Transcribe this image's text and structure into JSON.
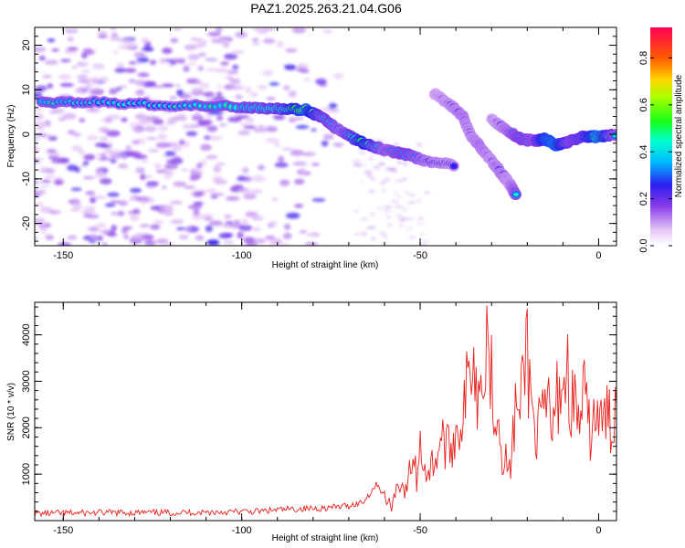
{
  "title": "PAZ1.2025.263.21.04.G06",
  "colors": {
    "snr_line": "#e8201c",
    "axis": "#000000",
    "background": "#ffffff"
  },
  "chart_data": [
    {
      "type": "heatmap",
      "name": "spectrogram",
      "xlabel": "Height of straight line (km)",
      "ylabel": "Frequency (Hz)",
      "xlim": [
        -158,
        5
      ],
      "ylim": [
        -25,
        24
      ],
      "x_ticks": [
        -150,
        -100,
        -50,
        0
      ],
      "y_ticks": [
        -20,
        -10,
        0,
        10,
        20
      ],
      "x_tick_labels": [
        "-150",
        "-100",
        "-50",
        "0"
      ],
      "y_tick_labels": [
        "-20",
        "-10",
        "0",
        "10",
        "20"
      ],
      "colorbar": {
        "label": "Normalized spectral amplitude",
        "range": [
          0,
          0.93
        ],
        "ticks": [
          0,
          0.2,
          0.4,
          0.6,
          0.8
        ],
        "tick_labels": [
          "0.0",
          "0.2",
          "0.4",
          "0.6",
          "0.8"
        ]
      },
      "ridges": [
        {
          "name": "main-ridge",
          "points": [
            [
              -156,
              7.2
            ],
            [
              -140,
              7.2
            ],
            [
              -120,
              6.5
            ],
            [
              -100,
              6.2
            ],
            [
              -90,
              5.8
            ],
            [
              -82,
              5.5
            ],
            [
              -78,
              4
            ],
            [
              -72,
              0.5
            ],
            [
              -66,
              -2
            ],
            [
              -60,
              -3.5
            ],
            [
              -54,
              -4.5
            ],
            [
              -48,
              -6
            ],
            [
              -40,
              -7
            ]
          ],
          "amplitude": [
            0.45,
            0.4,
            0.4,
            0.5,
            0.55,
            0.85,
            0.55,
            0.4,
            0.75,
            0.4,
            0.5,
            0.35,
            0.3
          ]
        },
        {
          "name": "descending-ridge",
          "points": [
            [
              -46,
              9
            ],
            [
              -42,
              7
            ],
            [
              -38,
              4
            ],
            [
              -36,
              0
            ],
            [
              -33,
              -3
            ],
            [
              -30,
              -6
            ],
            [
              -27,
              -9
            ],
            [
              -25,
              -11
            ],
            [
              -23,
              -14
            ]
          ],
          "amplitude": [
            0.25,
            0.3,
            0.35,
            0.3,
            0.35,
            0.3,
            0.35,
            0.3,
            0.45
          ]
        },
        {
          "name": "right-ridge",
          "points": [
            [
              -30,
              3.5
            ],
            [
              -26,
              1
            ],
            [
              -22,
              -1
            ],
            [
              -18,
              -1.5
            ],
            [
              -15,
              -1
            ],
            [
              -12,
              -2.5
            ],
            [
              -8,
              -1.5
            ],
            [
              -4,
              -0.5
            ],
            [
              0,
              -0.5
            ],
            [
              5,
              0
            ]
          ],
          "amplitude": [
            0.25,
            0.35,
            0.5,
            0.45,
            0.8,
            0.85,
            0.5,
            0.6,
            0.9,
            0.4
          ]
        }
      ],
      "noise_x_range": [
        -158,
        -68
      ]
    },
    {
      "type": "line",
      "name": "snr",
      "xlabel": "Height of straight line (km)",
      "ylabel": "SNR (10 * v/v)",
      "xlim": [
        -158,
        5
      ],
      "ylim": [
        0,
        4700
      ],
      "x_ticks": [
        -150,
        -100,
        -50,
        0
      ],
      "y_ticks": [
        1000,
        2000,
        3000,
        4000
      ],
      "x_tick_labels": [
        "-150",
        "-100",
        "-50",
        "0"
      ],
      "y_tick_labels": [
        "1000",
        "2000",
        "3000",
        "4000"
      ],
      "series": [
        {
          "name": "SNR",
          "x": [
            -158,
            -150,
            -140,
            -130,
            -120,
            -110,
            -100,
            -95,
            -90,
            -85,
            -80,
            -75,
            -70,
            -66,
            -64,
            -62,
            -60,
            -58,
            -56,
            -54,
            -52,
            -51,
            -50,
            -48,
            -46,
            -44,
            -42,
            -40,
            -38,
            -36,
            -35,
            -34,
            -33,
            -32,
            -31,
            -30,
            -29,
            -28,
            -27,
            -26,
            -25,
            -24,
            -23,
            -22,
            -21,
            -20,
            -19,
            -18,
            -17,
            -16,
            -15,
            -14,
            -13,
            -12,
            -11,
            -10,
            -9,
            -8,
            -7,
            -6,
            -5,
            -4,
            -3,
            -2,
            -1,
            0,
            1,
            2,
            3,
            4,
            5
          ],
          "y": [
            150,
            160,
            170,
            170,
            170,
            180,
            190,
            200,
            230,
            250,
            260,
            280,
            320,
            400,
            600,
            800,
            500,
            300,
            900,
            600,
            1400,
            900,
            1600,
            1000,
            1300,
            1800,
            1500,
            1900,
            2300,
            3200,
            4200,
            2200,
            4700,
            2500,
            4600,
            3000,
            2600,
            2200,
            1500,
            1300,
            1000,
            1800,
            2600,
            2000,
            3500,
            3700,
            2600,
            2100,
            1800,
            2300,
            2100,
            2600,
            1800,
            2400,
            3000,
            2900,
            3300,
            2700,
            2500,
            2300,
            2200,
            2700,
            2000,
            1900,
            2400,
            2100,
            2000,
            2300,
            2100,
            2200,
            2500
          ]
        }
      ]
    }
  ]
}
